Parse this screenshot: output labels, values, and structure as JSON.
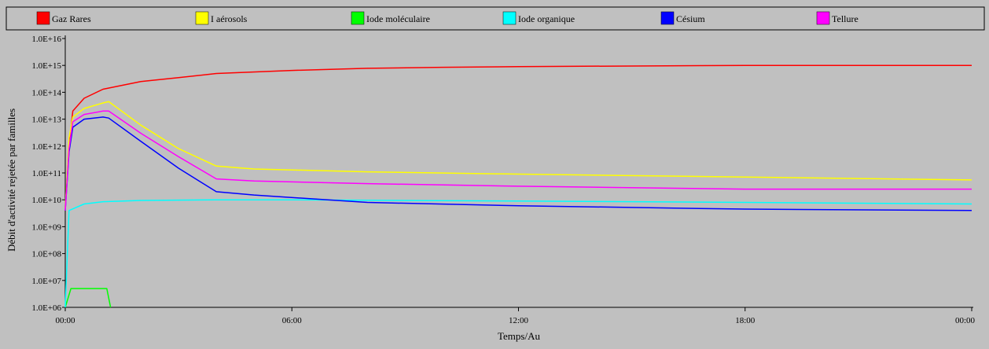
{
  "colors": {
    "background": "#c0c0c0",
    "axis": "#000000"
  },
  "chart_data": {
    "type": "line",
    "xlabel": "Temps/Au",
    "ylabel": "Débit d'activité  rejetée par familles",
    "yscale": "log",
    "xlim": [
      0,
      24
    ],
    "ylim": [
      1000000,
      10000000000000000
    ],
    "x_ticks": [
      {
        "value": 0,
        "label": "00:00"
      },
      {
        "value": 6,
        "label": "06:00"
      },
      {
        "value": 12,
        "label": "12:00"
      },
      {
        "value": 18,
        "label": "18:00"
      },
      {
        "value": 24,
        "label": "00:00"
      }
    ],
    "y_ticks": [
      {
        "value": 1000000,
        "label": "1.0E+06"
      },
      {
        "value": 10000000,
        "label": "1.0E+07"
      },
      {
        "value": 100000000,
        "label": "1.0E+08"
      },
      {
        "value": 1000000000,
        "label": "1.0E+09"
      },
      {
        "value": 10000000000,
        "label": "1.0E+10"
      },
      {
        "value": 100000000000,
        "label": "1.0E+11"
      },
      {
        "value": 1000000000000,
        "label": "1.0E+12"
      },
      {
        "value": 10000000000000,
        "label": "1.0E+13"
      },
      {
        "value": 100000000000000,
        "label": "1.0E+14"
      },
      {
        "value": 1000000000000000,
        "label": "1.0E+15"
      },
      {
        "value": 10000000000000000,
        "label": "1.0E+16"
      }
    ],
    "legend_position": "top",
    "series": [
      {
        "name": "Gaz Rares",
        "color": "#ff0000",
        "points": [
          [
            0,
            5000000000
          ],
          [
            0.1,
            1000000000000
          ],
          [
            0.2,
            20000000000000
          ],
          [
            0.5,
            60000000000000
          ],
          [
            1,
            130000000000000
          ],
          [
            1.5,
            180000000000000
          ],
          [
            2,
            250000000000000
          ],
          [
            3,
            350000000000000
          ],
          [
            4,
            500000000000000
          ],
          [
            6,
            650000000000000
          ],
          [
            8,
            780000000000000
          ],
          [
            10,
            850000000000000
          ],
          [
            12,
            900000000000000
          ],
          [
            15,
            950000000000000
          ],
          [
            18,
            1000000000000000
          ],
          [
            24,
            1000000000000000
          ]
        ]
      },
      {
        "name": "I aérosols",
        "color": "#ffff00",
        "points": [
          [
            0,
            5000000000
          ],
          [
            0.1,
            2000000000000
          ],
          [
            0.2,
            12000000000000
          ],
          [
            0.5,
            25000000000000
          ],
          [
            1,
            40000000000000
          ],
          [
            1.15,
            45000000000000
          ],
          [
            2,
            6000000000000
          ],
          [
            3,
            800000000000
          ],
          [
            4,
            180000000000
          ],
          [
            5,
            140000000000
          ],
          [
            8,
            110000000000
          ],
          [
            12,
            90000000000
          ],
          [
            18,
            70000000000
          ],
          [
            24,
            55000000000
          ]
        ]
      },
      {
        "name": "Iode moléculaire",
        "color": "#00ff00",
        "points": [
          [
            0,
            1000000
          ],
          [
            0.15,
            5000000
          ],
          [
            1.1,
            5000000
          ],
          [
            1.2,
            1000000
          ]
        ]
      },
      {
        "name": "Iode organique",
        "color": "#00ffff",
        "points": [
          [
            0,
            1000000
          ],
          [
            0.1,
            4000000000
          ],
          [
            0.5,
            7000000000
          ],
          [
            1,
            8500000000
          ],
          [
            2,
            9500000000
          ],
          [
            4,
            10000000000
          ],
          [
            6,
            10000000000
          ],
          [
            12,
            9000000000
          ],
          [
            18,
            8000000000
          ],
          [
            24,
            7000000000
          ]
        ]
      },
      {
        "name": "Césium",
        "color": "#0000ff",
        "points": [
          [
            0,
            4000000000
          ],
          [
            0.1,
            600000000000
          ],
          [
            0.2,
            5000000000000
          ],
          [
            0.5,
            10000000000000
          ],
          [
            1,
            12000000000000
          ],
          [
            1.15,
            11000000000000
          ],
          [
            2,
            1500000000000
          ],
          [
            3,
            150000000000
          ],
          [
            4,
            20000000000
          ],
          [
            5,
            15000000000
          ],
          [
            8,
            8000000000
          ],
          [
            12,
            6000000000
          ],
          [
            18,
            4500000000
          ],
          [
            24,
            4000000000
          ]
        ]
      },
      {
        "name": "Tellure",
        "color": "#ff00ff",
        "points": [
          [
            0,
            4000000000
          ],
          [
            0.1,
            800000000000
          ],
          [
            0.2,
            8000000000000
          ],
          [
            0.5,
            15000000000000
          ],
          [
            1,
            20000000000000
          ],
          [
            1.15,
            20000000000000
          ],
          [
            2,
            3000000000000
          ],
          [
            3,
            400000000000
          ],
          [
            4,
            60000000000
          ],
          [
            5,
            50000000000
          ],
          [
            8,
            40000000000
          ],
          [
            12,
            32000000000
          ],
          [
            18,
            25000000000
          ],
          [
            24,
            25000000000
          ]
        ]
      }
    ]
  }
}
